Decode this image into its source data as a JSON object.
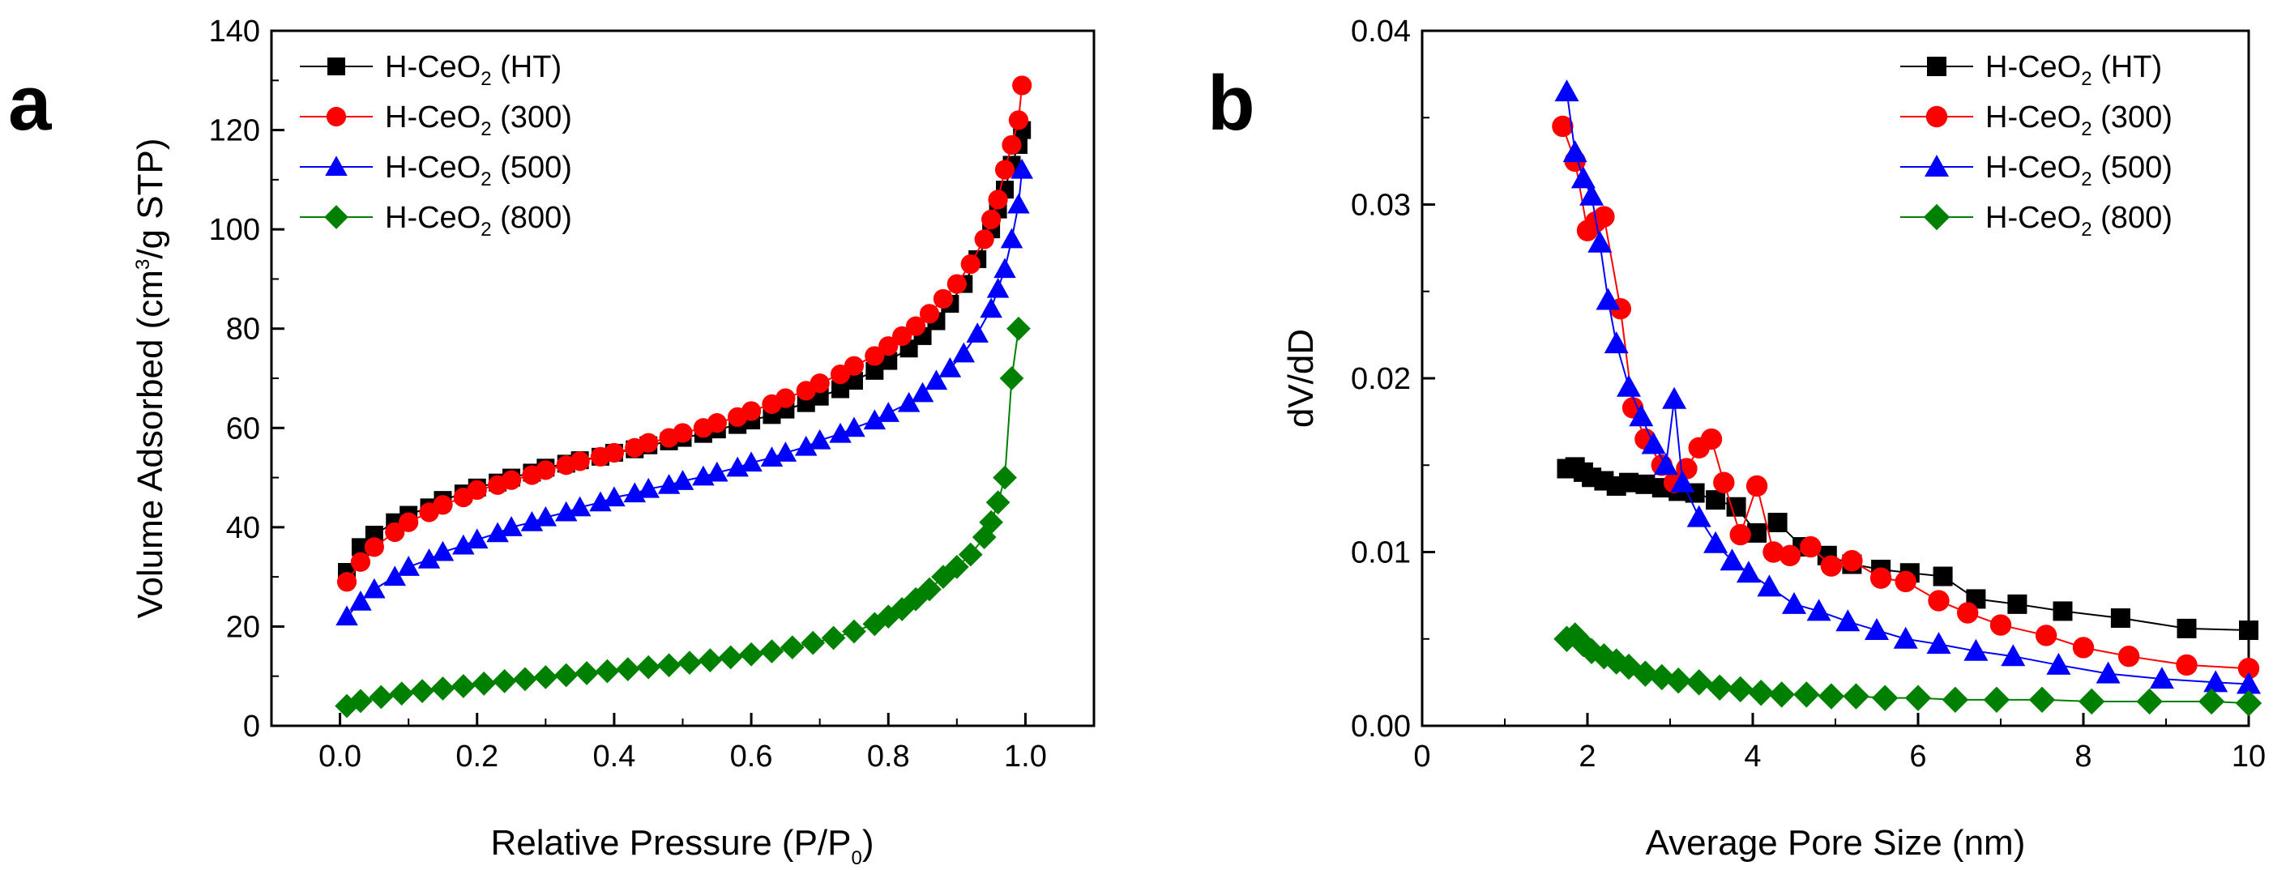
{
  "figure": {
    "panels": [
      "a",
      "b"
    ]
  },
  "chart_data": [
    {
      "type": "line",
      "panel": "a",
      "title": "",
      "xlabel": "Relative Pressure (P/P0)",
      "xlabel_main": "Relative Pressure (P/P",
      "xlabel_sub": "0",
      "xlabel_end": ")",
      "ylabel": "Volume Adsorbed (cm3/g STP)",
      "ylabel_main": "Volume Adsorbed (cm",
      "ylabel_sup": "3",
      "ylabel_end": "/g STP)",
      "xlim": [
        -0.1,
        1.1
      ],
      "ylim": [
        0,
        140
      ],
      "xticks": [
        0.0,
        0.2,
        0.4,
        0.6,
        0.8,
        1.0
      ],
      "xtick_labels": [
        "0.0",
        "0.2",
        "0.4",
        "0.6",
        "0.8",
        "1.0"
      ],
      "yticks": [
        0,
        20,
        40,
        60,
        80,
        100,
        120,
        140
      ],
      "ytick_labels": [
        "0",
        "20",
        "40",
        "60",
        "80",
        "100",
        "120",
        "140"
      ],
      "legend_position": "top-left",
      "series": [
        {
          "name": "H-CeO2 (HT)",
          "label_main": "H-CeO",
          "label_sub": "2",
          "label_end": " (HT)",
          "color": "#000000",
          "marker": "square",
          "x": [
            0.01,
            0.03,
            0.05,
            0.08,
            0.1,
            0.13,
            0.15,
            0.18,
            0.2,
            0.23,
            0.25,
            0.28,
            0.3,
            0.33,
            0.35,
            0.38,
            0.4,
            0.43,
            0.45,
            0.48,
            0.5,
            0.53,
            0.55,
            0.58,
            0.6,
            0.63,
            0.65,
            0.68,
            0.7,
            0.73,
            0.75,
            0.78,
            0.8,
            0.83,
            0.85,
            0.87,
            0.89,
            0.91,
            0.93,
            0.95,
            0.96,
            0.97,
            0.98,
            0.99,
            0.995
          ],
          "values": [
            31,
            36,
            38.5,
            41,
            42.5,
            44,
            45.5,
            46.8,
            48,
            49,
            50,
            51,
            52,
            52.8,
            53.5,
            54.2,
            55,
            55.7,
            56.5,
            57.3,
            58,
            58.8,
            59.7,
            60.6,
            61.5,
            62.6,
            63.7,
            65,
            66.3,
            67.8,
            69.5,
            71.5,
            73.5,
            76,
            78.5,
            81.5,
            85,
            89,
            94,
            100,
            104,
            108,
            113,
            117,
            120
          ]
        },
        {
          "name": "H-CeO2 (300)",
          "label_main": "H-CeO",
          "label_sub": "2",
          "label_end": " (300)",
          "color": "#ff0000",
          "marker": "circle",
          "x": [
            0.01,
            0.03,
            0.05,
            0.08,
            0.1,
            0.13,
            0.15,
            0.18,
            0.2,
            0.23,
            0.25,
            0.28,
            0.3,
            0.33,
            0.35,
            0.38,
            0.4,
            0.43,
            0.45,
            0.48,
            0.5,
            0.53,
            0.55,
            0.58,
            0.6,
            0.63,
            0.65,
            0.68,
            0.7,
            0.73,
            0.75,
            0.78,
            0.8,
            0.82,
            0.84,
            0.86,
            0.88,
            0.9,
            0.92,
            0.94,
            0.95,
            0.96,
            0.97,
            0.98,
            0.99,
            0.995
          ],
          "values": [
            29,
            33,
            36,
            39,
            41,
            43,
            44.5,
            46,
            47.5,
            48.5,
            49.5,
            50.5,
            51.5,
            52.5,
            53.3,
            54.2,
            55,
            56,
            57,
            58,
            59,
            60,
            61,
            62.2,
            63.4,
            64.8,
            66,
            67.5,
            69,
            70.8,
            72.5,
            74.5,
            76.5,
            78.5,
            80.5,
            83,
            86,
            89,
            93,
            98,
            102,
            106,
            112,
            117,
            122,
            129
          ]
        },
        {
          "name": "H-CeO2 (500)",
          "label_main": "H-CeO",
          "label_sub": "2",
          "label_end": " (500)",
          "color": "#0000ff",
          "marker": "triangle",
          "x": [
            0.01,
            0.03,
            0.05,
            0.08,
            0.1,
            0.13,
            0.15,
            0.18,
            0.2,
            0.23,
            0.25,
            0.28,
            0.3,
            0.33,
            0.35,
            0.38,
            0.4,
            0.43,
            0.45,
            0.48,
            0.5,
            0.53,
            0.55,
            0.58,
            0.6,
            0.63,
            0.65,
            0.68,
            0.7,
            0.73,
            0.75,
            0.78,
            0.8,
            0.83,
            0.85,
            0.87,
            0.89,
            0.91,
            0.93,
            0.95,
            0.96,
            0.97,
            0.98,
            0.99,
            0.995
          ],
          "values": [
            22,
            25,
            27.5,
            30,
            32,
            33.5,
            35,
            36.3,
            37.5,
            38.8,
            40,
            41,
            42,
            43,
            44,
            45,
            46,
            46.8,
            47.7,
            48.5,
            49.3,
            50.2,
            51,
            52,
            53,
            54,
            55,
            56.2,
            57.5,
            58.8,
            60,
            61.5,
            63,
            65,
            67,
            69.5,
            72,
            75,
            79,
            84,
            88,
            92,
            98,
            105,
            112
          ]
        },
        {
          "name": "H-CeO2 (800)",
          "label_main": "H-CeO",
          "label_sub": "2",
          "label_end": " (800)",
          "color": "#008000",
          "marker": "diamond",
          "x": [
            0.01,
            0.03,
            0.06,
            0.09,
            0.12,
            0.15,
            0.18,
            0.21,
            0.24,
            0.27,
            0.3,
            0.33,
            0.36,
            0.39,
            0.42,
            0.45,
            0.48,
            0.51,
            0.54,
            0.57,
            0.6,
            0.63,
            0.66,
            0.69,
            0.72,
            0.75,
            0.78,
            0.8,
            0.82,
            0.84,
            0.86,
            0.88,
            0.9,
            0.92,
            0.94,
            0.95,
            0.96,
            0.97,
            0.98,
            0.99
          ],
          "values": [
            4,
            5,
            5.8,
            6.5,
            7,
            7.5,
            8,
            8.5,
            9,
            9.4,
            9.8,
            10.2,
            10.6,
            11,
            11.4,
            11.8,
            12.2,
            12.7,
            13.2,
            13.8,
            14.4,
            15,
            15.8,
            16.7,
            17.7,
            19,
            20.5,
            22,
            23.5,
            25.5,
            27.5,
            30,
            32,
            34.5,
            38,
            41,
            45,
            50,
            70,
            80
          ]
        }
      ]
    },
    {
      "type": "line",
      "panel": "b",
      "title": "",
      "xlabel": "Average Pore Size (nm)",
      "ylabel": "dV/dD",
      "xlim": [
        0,
        10
      ],
      "ylim": [
        0,
        0.04
      ],
      "xticks": [
        0,
        2,
        4,
        6,
        8,
        10
      ],
      "xtick_labels": [
        "0",
        "2",
        "4",
        "6",
        "8",
        "10"
      ],
      "yticks": [
        0,
        0.01,
        0.02,
        0.03,
        0.04
      ],
      "ytick_labels": [
        "0.00",
        "0.01",
        "0.02",
        "0.03",
        "0.04"
      ],
      "legend_position": "top-right",
      "series": [
        {
          "name": "H-CeO2 (HT)",
          "label_main": "H-CeO",
          "label_sub": "2",
          "label_end": " (HT)",
          "color": "#000000",
          "marker": "square",
          "x": [
            1.75,
            1.85,
            1.95,
            2.05,
            2.2,
            2.35,
            2.5,
            2.7,
            2.9,
            3.1,
            3.3,
            3.55,
            3.8,
            4.05,
            4.3,
            4.6,
            4.9,
            5.2,
            5.55,
            5.9,
            6.3,
            6.7,
            7.2,
            7.75,
            8.45,
            9.25,
            10.0
          ],
          "values": [
            0.0148,
            0.0149,
            0.0146,
            0.0143,
            0.0141,
            0.0138,
            0.014,
            0.0139,
            0.0137,
            0.0135,
            0.0134,
            0.013,
            0.0126,
            0.0111,
            0.0117,
            0.0103,
            0.0098,
            0.0093,
            0.009,
            0.0088,
            0.0086,
            0.0073,
            0.007,
            0.0066,
            0.0062,
            0.0056,
            0.0055
          ]
        },
        {
          "name": "H-CeO2 (300)",
          "label_main": "H-CeO",
          "label_sub": "2",
          "label_end": " (300)",
          "color": "#ff0000",
          "marker": "circle",
          "x": [
            1.7,
            1.85,
            2.0,
            2.1,
            2.2,
            2.4,
            2.55,
            2.7,
            2.9,
            3.05,
            3.2,
            3.35,
            3.5,
            3.65,
            3.85,
            4.05,
            4.25,
            4.45,
            4.7,
            4.95,
            5.2,
            5.55,
            5.85,
            6.25,
            6.6,
            7.0,
            7.55,
            8.0,
            8.55,
            9.25,
            10.0
          ],
          "values": [
            0.0345,
            0.0325,
            0.0285,
            0.029,
            0.0293,
            0.024,
            0.0183,
            0.0165,
            0.015,
            0.014,
            0.0148,
            0.016,
            0.0165,
            0.014,
            0.011,
            0.0138,
            0.01,
            0.0098,
            0.0103,
            0.0092,
            0.0095,
            0.0085,
            0.0083,
            0.0072,
            0.0065,
            0.0058,
            0.0052,
            0.0045,
            0.004,
            0.0035,
            0.0033
          ]
        },
        {
          "name": "H-CeO2 (500)",
          "label_main": "H-CeO",
          "label_sub": "2",
          "label_end": " (500)",
          "color": "#0000ff",
          "marker": "triangle",
          "x": [
            1.75,
            1.85,
            1.95,
            2.05,
            2.15,
            2.25,
            2.35,
            2.5,
            2.65,
            2.8,
            2.95,
            3.05,
            3.15,
            3.35,
            3.55,
            3.75,
            3.95,
            4.2,
            4.5,
            4.8,
            5.15,
            5.5,
            5.85,
            6.25,
            6.7,
            7.15,
            7.7,
            8.3,
            8.95,
            9.6,
            10.0
          ],
          "values": [
            0.0365,
            0.033,
            0.0315,
            0.0305,
            0.0278,
            0.0245,
            0.022,
            0.0195,
            0.0178,
            0.0162,
            0.015,
            0.0188,
            0.014,
            0.012,
            0.0105,
            0.0095,
            0.0088,
            0.008,
            0.007,
            0.0066,
            0.006,
            0.0055,
            0.005,
            0.0047,
            0.0043,
            0.004,
            0.0035,
            0.003,
            0.0027,
            0.0025,
            0.0024
          ]
        },
        {
          "name": "H-CeO2 (800)",
          "label_main": "H-CeO",
          "label_sub": "2",
          "label_end": " (800)",
          "color": "#008000",
          "marker": "diamond",
          "x": [
            1.75,
            1.85,
            1.95,
            2.05,
            2.2,
            2.35,
            2.5,
            2.7,
            2.9,
            3.1,
            3.35,
            3.6,
            3.85,
            4.1,
            4.35,
            4.65,
            4.95,
            5.25,
            5.6,
            6.0,
            6.45,
            6.95,
            7.5,
            8.1,
            8.8,
            9.55,
            10.0
          ],
          "values": [
            0.005,
            0.0052,
            0.0047,
            0.0043,
            0.004,
            0.0037,
            0.0034,
            0.003,
            0.0028,
            0.0026,
            0.0025,
            0.0022,
            0.0021,
            0.0019,
            0.0018,
            0.0018,
            0.0017,
            0.0017,
            0.0016,
            0.0016,
            0.0015,
            0.0015,
            0.0015,
            0.0014,
            0.0014,
            0.0014,
            0.0013
          ]
        }
      ]
    }
  ]
}
